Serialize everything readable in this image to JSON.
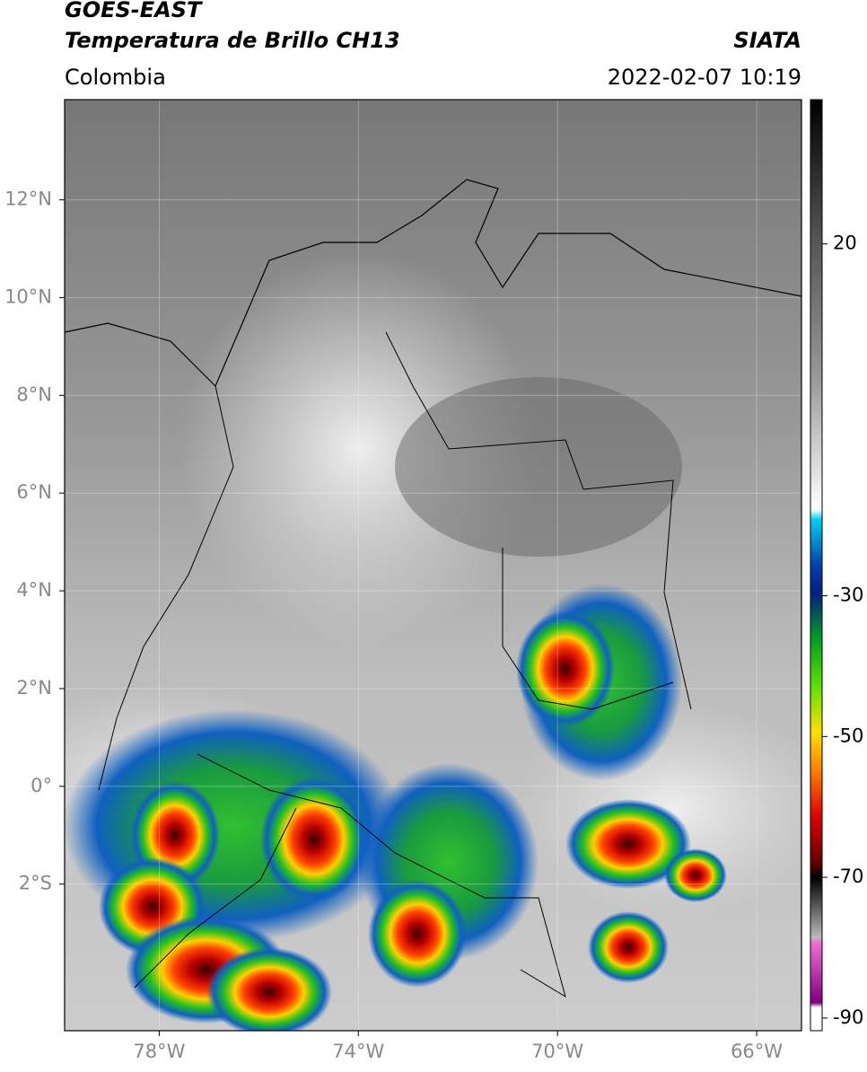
{
  "header": {
    "title": "GOES-EAST",
    "subtitle": "Temperatura de Brillo CH13",
    "source": "SIATA",
    "region": "Colombia",
    "datetime": "2022-02-07 10:19"
  },
  "map": {
    "lon_range": [
      -79.9,
      -65.1
    ],
    "lat_range": [
      -5.0,
      14.05
    ],
    "lat_ticks": [
      {
        "value": 12,
        "label": "12°N"
      },
      {
        "value": 10,
        "label": "10°N"
      },
      {
        "value": 8,
        "label": "8°N"
      },
      {
        "value": 6,
        "label": "6°N"
      },
      {
        "value": 4,
        "label": "4°N"
      },
      {
        "value": 2,
        "label": "2°N"
      },
      {
        "value": 0,
        "label": "0°"
      },
      {
        "value": -2,
        "label": "2°S"
      }
    ],
    "lon_ticks": [
      {
        "value": -78,
        "label": "78°W"
      },
      {
        "value": -74,
        "label": "74°W"
      },
      {
        "value": -70,
        "label": "70°W"
      },
      {
        "value": -66,
        "label": "66°W"
      }
    ]
  },
  "colorbar": {
    "range": [
      -91.8,
      40.5
    ],
    "ticks": [
      20,
      -30,
      -50,
      -70,
      -90
    ]
  }
}
